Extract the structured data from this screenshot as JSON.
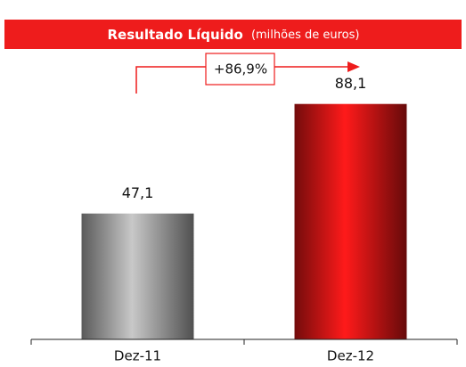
{
  "chart_data": {
    "type": "bar",
    "title": "Resultado Líquido",
    "subtitle": "(milhões de euros)",
    "annotation": "+86,9%",
    "categories": [
      "Dez-11",
      "Dez-12"
    ],
    "values": [
      47.1,
      88.1
    ],
    "value_labels": [
      "47,1",
      "88,1"
    ],
    "colors": [
      "#c8c8c8",
      "#ff1a1a"
    ],
    "banner_color": "#ee1c1c",
    "ylim": [
      0,
      100
    ]
  }
}
